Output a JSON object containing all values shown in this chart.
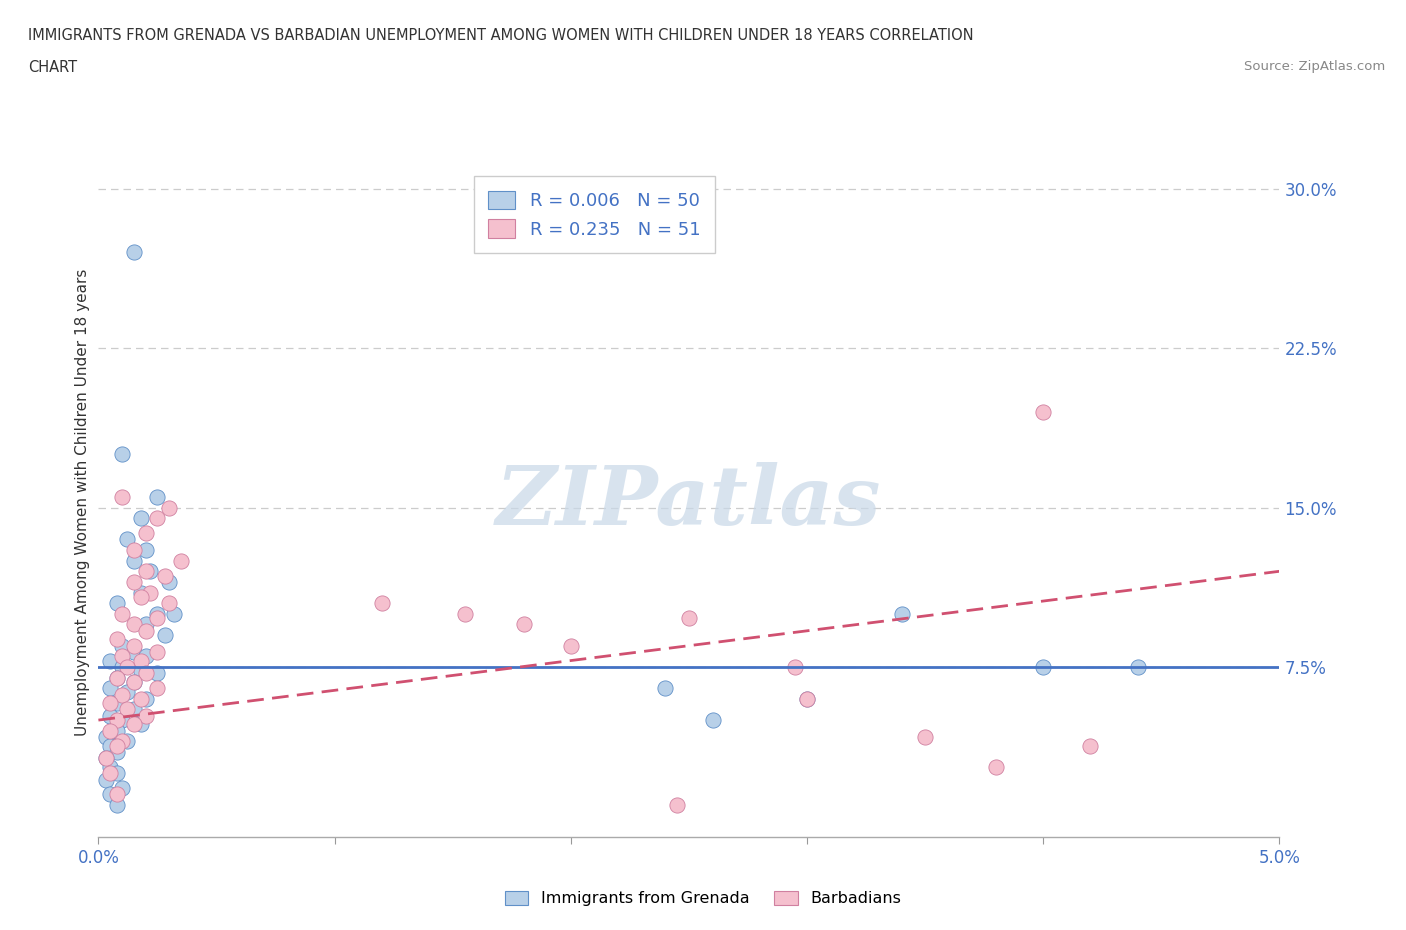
{
  "title_line1": "IMMIGRANTS FROM GRENADA VS BARBADIAN UNEMPLOYMENT AMONG WOMEN WITH CHILDREN UNDER 18 YEARS CORRELATION",
  "title_line2": "CHART",
  "source": "Source: ZipAtlas.com",
  "ylabel": "Unemployment Among Women with Children Under 18 years",
  "xlim": [
    0.0,
    0.05
  ],
  "ylim": [
    -0.005,
    0.31
  ],
  "xtick_positions": [
    0.0,
    0.01,
    0.02,
    0.03,
    0.04,
    0.05
  ],
  "xtick_labels": [
    "0.0%",
    "",
    "",
    "",
    "",
    "5.0%"
  ],
  "ytick_positions": [
    0.075,
    0.15,
    0.225,
    0.3
  ],
  "ytick_labels": [
    "7.5%",
    "15.0%",
    "22.5%",
    "30.0%"
  ],
  "color_blue": "#b8d0e8",
  "color_pink": "#f5c0ce",
  "edge_blue": "#6090c8",
  "edge_pink": "#d080a0",
  "line_blue": "#4472c4",
  "line_pink": "#d05070",
  "watermark_color": "#c8d8e8",
  "scatter_blue": [
    [
      0.0015,
      0.27
    ],
    [
      0.001,
      0.175
    ],
    [
      0.0025,
      0.155
    ],
    [
      0.0018,
      0.145
    ],
    [
      0.0012,
      0.135
    ],
    [
      0.002,
      0.13
    ],
    [
      0.0015,
      0.125
    ],
    [
      0.0022,
      0.12
    ],
    [
      0.003,
      0.115
    ],
    [
      0.0018,
      0.11
    ],
    [
      0.0008,
      0.105
    ],
    [
      0.0025,
      0.1
    ],
    [
      0.0032,
      0.1
    ],
    [
      0.002,
      0.095
    ],
    [
      0.0028,
      0.09
    ],
    [
      0.001,
      0.085
    ],
    [
      0.0015,
      0.082
    ],
    [
      0.002,
      0.08
    ],
    [
      0.0005,
      0.078
    ],
    [
      0.001,
      0.075
    ],
    [
      0.0018,
      0.073
    ],
    [
      0.0025,
      0.072
    ],
    [
      0.0008,
      0.07
    ],
    [
      0.0015,
      0.068
    ],
    [
      0.0005,
      0.065
    ],
    [
      0.0012,
      0.063
    ],
    [
      0.002,
      0.06
    ],
    [
      0.0008,
      0.058
    ],
    [
      0.0015,
      0.055
    ],
    [
      0.0005,
      0.052
    ],
    [
      0.001,
      0.05
    ],
    [
      0.0018,
      0.048
    ],
    [
      0.0008,
      0.045
    ],
    [
      0.0003,
      0.042
    ],
    [
      0.0012,
      0.04
    ],
    [
      0.0005,
      0.038
    ],
    [
      0.0008,
      0.035
    ],
    [
      0.0003,
      0.032
    ],
    [
      0.0005,
      0.028
    ],
    [
      0.0008,
      0.025
    ],
    [
      0.0003,
      0.022
    ],
    [
      0.001,
      0.018
    ],
    [
      0.0005,
      0.015
    ],
    [
      0.0008,
      0.01
    ],
    [
      0.024,
      0.065
    ],
    [
      0.026,
      0.05
    ],
    [
      0.03,
      0.06
    ],
    [
      0.034,
      0.1
    ],
    [
      0.04,
      0.075
    ],
    [
      0.044,
      0.075
    ]
  ],
  "scatter_pink": [
    [
      0.001,
      0.155
    ],
    [
      0.003,
      0.15
    ],
    [
      0.0025,
      0.145
    ],
    [
      0.002,
      0.138
    ],
    [
      0.0015,
      0.13
    ],
    [
      0.0035,
      0.125
    ],
    [
      0.002,
      0.12
    ],
    [
      0.0028,
      0.118
    ],
    [
      0.0015,
      0.115
    ],
    [
      0.0022,
      0.11
    ],
    [
      0.0018,
      0.108
    ],
    [
      0.003,
      0.105
    ],
    [
      0.001,
      0.1
    ],
    [
      0.0025,
      0.098
    ],
    [
      0.0015,
      0.095
    ],
    [
      0.002,
      0.092
    ],
    [
      0.0008,
      0.088
    ],
    [
      0.0015,
      0.085
    ],
    [
      0.0025,
      0.082
    ],
    [
      0.001,
      0.08
    ],
    [
      0.0018,
      0.078
    ],
    [
      0.0012,
      0.075
    ],
    [
      0.002,
      0.072
    ],
    [
      0.0008,
      0.07
    ],
    [
      0.0015,
      0.068
    ],
    [
      0.0025,
      0.065
    ],
    [
      0.001,
      0.062
    ],
    [
      0.0018,
      0.06
    ],
    [
      0.0005,
      0.058
    ],
    [
      0.0012,
      0.055
    ],
    [
      0.002,
      0.052
    ],
    [
      0.0008,
      0.05
    ],
    [
      0.0015,
      0.048
    ],
    [
      0.0005,
      0.045
    ],
    [
      0.001,
      0.04
    ],
    [
      0.0008,
      0.038
    ],
    [
      0.0003,
      0.032
    ],
    [
      0.0005,
      0.025
    ],
    [
      0.0008,
      0.015
    ],
    [
      0.012,
      0.105
    ],
    [
      0.0155,
      0.1
    ],
    [
      0.018,
      0.095
    ],
    [
      0.02,
      0.085
    ],
    [
      0.025,
      0.098
    ],
    [
      0.0295,
      0.075
    ],
    [
      0.03,
      0.06
    ],
    [
      0.035,
      0.042
    ],
    [
      0.038,
      0.028
    ],
    [
      0.042,
      0.038
    ],
    [
      0.04,
      0.195
    ],
    [
      0.0245,
      0.01
    ]
  ],
  "blue_line_y0": 0.075,
  "blue_line_y1": 0.075,
  "pink_line_y0": 0.05,
  "pink_line_y1": 0.12
}
